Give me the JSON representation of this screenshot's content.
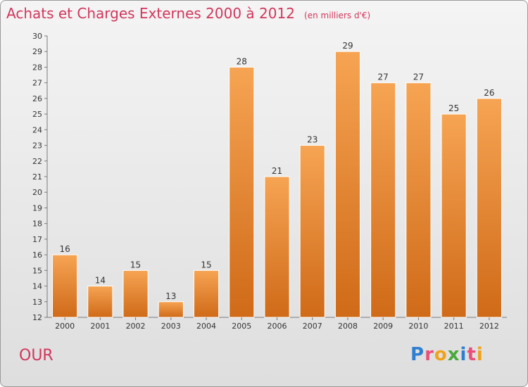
{
  "chart_data": {
    "type": "bar",
    "title": "Achats et Charges Externes 2000 à 2012",
    "subtitle": "(en milliers d'€)",
    "categories": [
      "2000",
      "2001",
      "2002",
      "2003",
      "2004",
      "2005",
      "2006",
      "2007",
      "2008",
      "2009",
      "2010",
      "2011",
      "2012"
    ],
    "values": [
      16,
      14,
      15,
      13,
      15,
      28,
      21,
      23,
      29,
      27,
      27,
      25,
      26
    ],
    "ylim": [
      12,
      30
    ],
    "yticks": [
      12,
      13,
      14,
      15,
      16,
      17,
      18,
      19,
      20,
      21,
      22,
      23,
      24,
      25,
      26,
      27,
      28,
      29,
      30
    ],
    "xlabel": "",
    "ylabel": "",
    "grid": false,
    "data_labels": true,
    "colors": {
      "bar_top": "#f6a453",
      "bar_bottom": "#cf6a18",
      "bar_stroke": "#ffffff",
      "axis": "#7a7a7a",
      "tick_label": "#333333",
      "title": "#d2365c"
    }
  },
  "footer": {
    "commune": "OUR",
    "logo": {
      "letters": [
        "P",
        "r",
        "o",
        "x",
        "i",
        "t",
        "i"
      ]
    }
  }
}
